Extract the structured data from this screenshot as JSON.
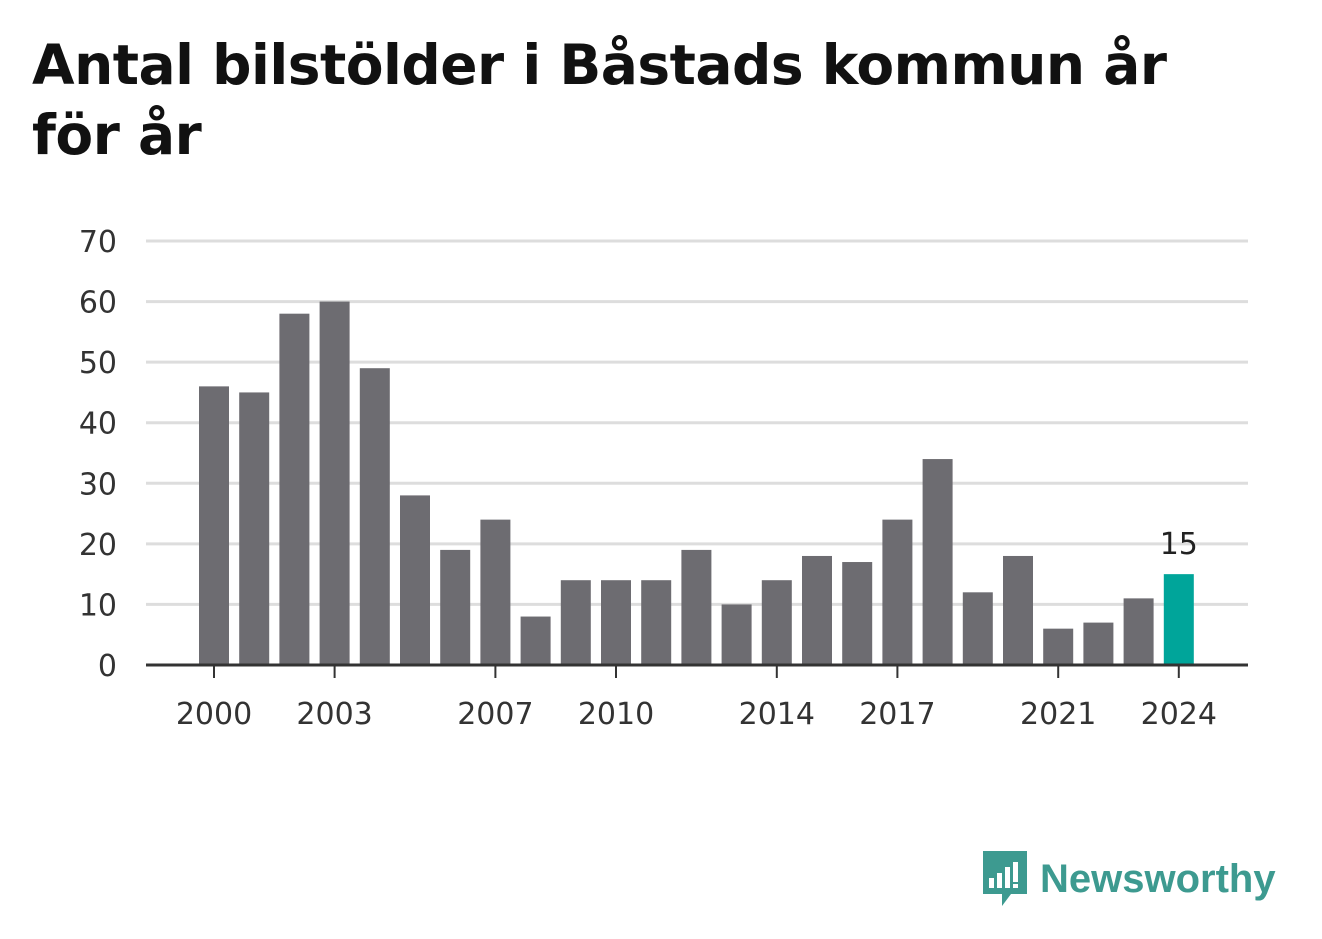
{
  "title": "Antal bilstölder i Båstads kommun år för år",
  "brand": {
    "name": "Newsworthy",
    "color": "#3d9a90"
  },
  "colors": {
    "bar": "#6d6c71",
    "highlight": "#00a59a",
    "grid": "#dddddd",
    "axis": "#333333"
  },
  "chart_data": {
    "type": "bar",
    "title": "Antal bilstölder i Båstads kommun år för år",
    "categories": [
      "2000",
      "2001",
      "2002",
      "2003",
      "2004",
      "2005",
      "2006",
      "2007",
      "2008",
      "2009",
      "2010",
      "2011",
      "2012",
      "2013",
      "2014",
      "2015",
      "2016",
      "2017",
      "2018",
      "2019",
      "2020",
      "2021",
      "2022",
      "2023",
      "2024"
    ],
    "values": [
      46,
      45,
      58,
      60,
      49,
      28,
      19,
      24,
      8,
      14,
      14,
      14,
      19,
      10,
      14,
      18,
      17,
      24,
      34,
      12,
      18,
      6,
      7,
      11,
      15
    ],
    "x_tick_labels": [
      "2000",
      "2003",
      "2007",
      "2010",
      "2014",
      "2017",
      "2021",
      "2024"
    ],
    "y_ticks": [
      0,
      10,
      20,
      30,
      40,
      50,
      60,
      70
    ],
    "ylim": [
      0,
      70
    ],
    "grid": true,
    "highlight": {
      "category": "2024",
      "label": "15"
    }
  }
}
